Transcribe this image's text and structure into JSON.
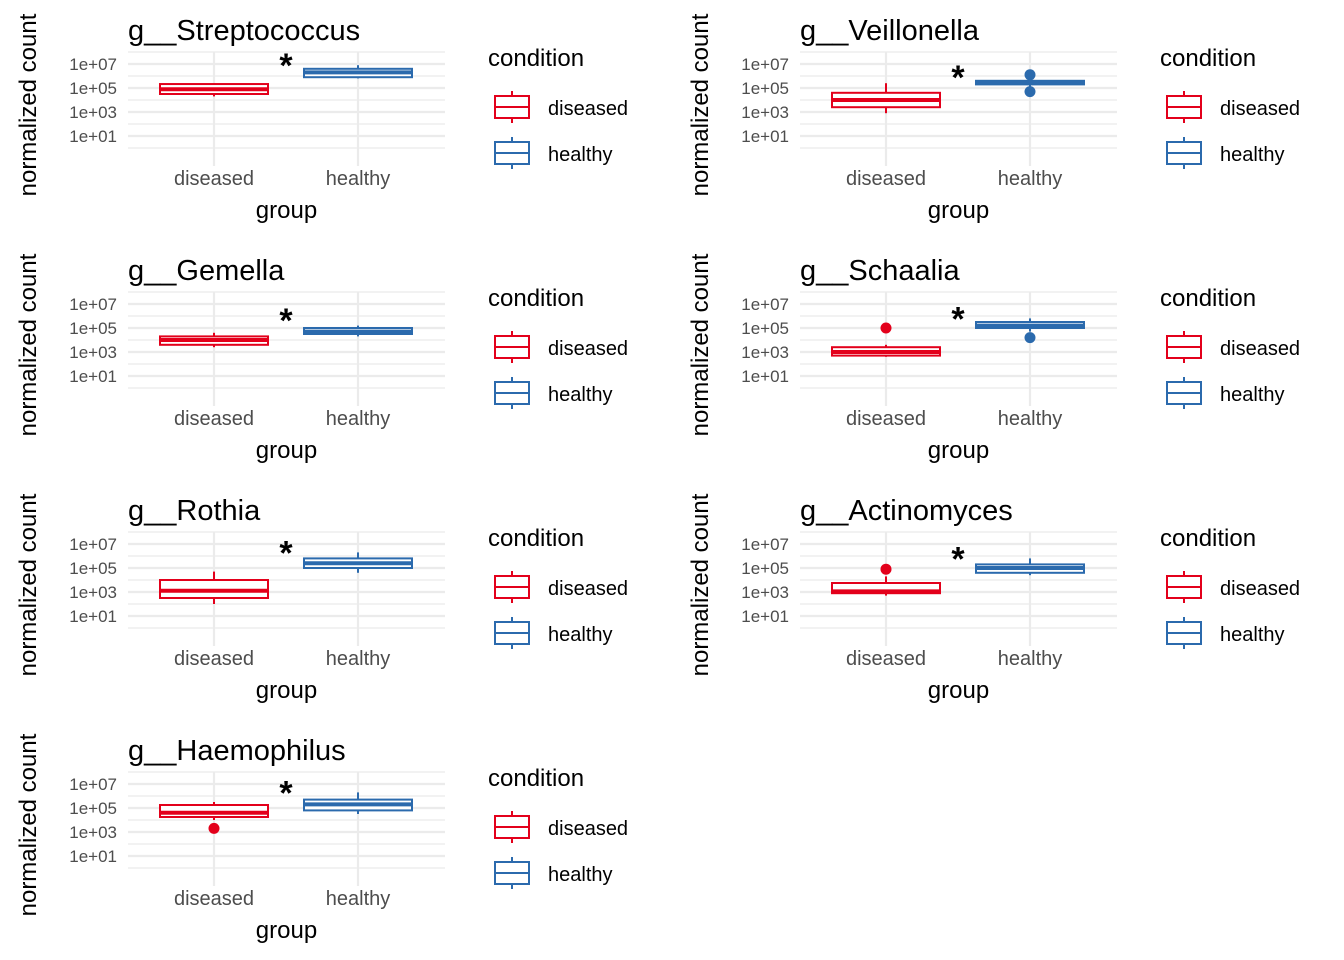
{
  "chart_data": {
    "type": "boxplot",
    "y_scale": "log10",
    "ylabel": "normalized count",
    "xlabel": "group",
    "categories": [
      "diseased",
      "healthy"
    ],
    "y_ticks": [
      "1e+01",
      "1e+03",
      "1e+05",
      "1e+07"
    ],
    "ylim_log10": [
      -0.5,
      8
    ],
    "legend": {
      "title": "condition",
      "placement": "right",
      "entries": [
        {
          "label": "diseased",
          "color": "#E3001B"
        },
        {
          "label": "healthy",
          "color": "#2B6AAD"
        }
      ]
    },
    "panels": [
      {
        "title": "g__Streptococcus",
        "significance": "*",
        "groups": [
          {
            "name": "diseased",
            "log10": {
              "lower": 4.3,
              "q1": 4.5,
              "median": 4.9,
              "q3": 5.33,
              "upper": 5.33
            },
            "outliers_log10": []
          },
          {
            "name": "healthy",
            "log10": {
              "lower": 5.8,
              "q1": 5.9,
              "median": 6.3,
              "q3": 6.6,
              "upper": 6.9
            },
            "outliers_log10": []
          }
        ]
      },
      {
        "title": "g__Veillonella",
        "significance": "*",
        "groups": [
          {
            "name": "diseased",
            "log10": {
              "lower": 2.9,
              "q1": 3.4,
              "median": 4.0,
              "q3": 4.6,
              "upper": 5.4
            },
            "outliers_log10": []
          },
          {
            "name": "healthy",
            "log10": {
              "lower": 5.0,
              "q1": 5.3,
              "median": 5.45,
              "q3": 5.6,
              "upper": 5.9
            },
            "outliers_log10": [
              6.1,
              4.7
            ]
          }
        ]
      },
      {
        "title": "g__Gemella",
        "significance": "*",
        "groups": [
          {
            "name": "diseased",
            "log10": {
              "lower": 3.4,
              "q1": 3.6,
              "median": 4.0,
              "q3": 4.3,
              "upper": 4.6
            },
            "outliers_log10": []
          },
          {
            "name": "healthy",
            "log10": {
              "lower": 4.3,
              "q1": 4.5,
              "median": 4.7,
              "q3": 5.0,
              "upper": 5.2
            },
            "outliers_log10": []
          }
        ]
      },
      {
        "title": "g__Schaalia",
        "significance": "*",
        "groups": [
          {
            "name": "diseased",
            "log10": {
              "lower": 2.6,
              "q1": 2.7,
              "median": 3.0,
              "q3": 3.4,
              "upper": 3.6
            },
            "outliers_log10": [
              5.0
            ]
          },
          {
            "name": "healthy",
            "log10": {
              "lower": 4.7,
              "q1": 5.0,
              "median": 5.2,
              "q3": 5.5,
              "upper": 5.8
            },
            "outliers_log10": [
              4.2
            ]
          }
        ]
      },
      {
        "title": "g__Rothia",
        "significance": "*",
        "groups": [
          {
            "name": "diseased",
            "log10": {
              "lower": 2.0,
              "q1": 2.5,
              "median": 3.1,
              "q3": 4.0,
              "upper": 4.7
            },
            "outliers_log10": []
          },
          {
            "name": "healthy",
            "log10": {
              "lower": 4.6,
              "q1": 5.0,
              "median": 5.4,
              "q3": 5.8,
              "upper": 6.3
            },
            "outliers_log10": []
          }
        ]
      },
      {
        "title": "g__Actinomyces",
        "significance": "*",
        "groups": [
          {
            "name": "diseased",
            "log10": {
              "lower": 2.7,
              "q1": 2.9,
              "median": 3.05,
              "q3": 3.75,
              "upper": 4.3
            },
            "outliers_log10": [
              4.9
            ]
          },
          {
            "name": "healthy",
            "log10": {
              "lower": 4.4,
              "q1": 4.6,
              "median": 5.0,
              "q3": 5.3,
              "upper": 5.8
            },
            "outliers_log10": []
          }
        ]
      },
      {
        "title": "g__Haemophilus",
        "significance": "*",
        "groups": [
          {
            "name": "diseased",
            "log10": {
              "lower": 4.0,
              "q1": 4.25,
              "median": 4.6,
              "q3": 5.25,
              "upper": 5.5
            },
            "outliers_log10": [
              3.3
            ]
          },
          {
            "name": "healthy",
            "log10": {
              "lower": 4.5,
              "q1": 4.8,
              "median": 5.3,
              "q3": 5.7,
              "upper": 6.3
            },
            "outliers_log10": []
          }
        ]
      }
    ]
  }
}
